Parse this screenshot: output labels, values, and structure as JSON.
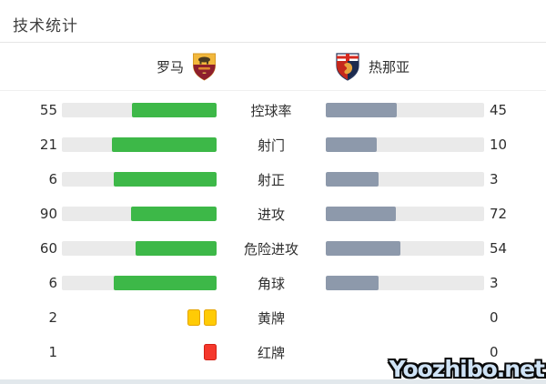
{
  "title": "技术统计",
  "teams": {
    "home": {
      "name": "罗马",
      "badge": "roma-crest"
    },
    "away": {
      "name": "热那亚",
      "badge": "genoa-crest"
    }
  },
  "stats": [
    {
      "label": "控球率",
      "home": 55,
      "away": 45,
      "type": "bar"
    },
    {
      "label": "射门",
      "home": 21,
      "away": 10,
      "type": "bar"
    },
    {
      "label": "射正",
      "home": 6,
      "away": 3,
      "type": "bar"
    },
    {
      "label": "进攻",
      "home": 90,
      "away": 72,
      "type": "bar"
    },
    {
      "label": "危险进攻",
      "home": 60,
      "away": 54,
      "type": "bar"
    },
    {
      "label": "角球",
      "home": 6,
      "away": 3,
      "type": "bar"
    },
    {
      "label": "黄牌",
      "home": 2,
      "away": 0,
      "type": "cards",
      "card": "yellow"
    },
    {
      "label": "红牌",
      "home": 1,
      "away": 0,
      "type": "cards",
      "card": "red"
    }
  ],
  "chart_data": {
    "type": "bar",
    "orientation": "horizontal-paired",
    "title": "技术统计",
    "categories": [
      "控球率",
      "射门",
      "射正",
      "进攻",
      "危险进攻",
      "角球",
      "黄牌",
      "红牌"
    ],
    "series": [
      {
        "name": "罗马",
        "color": "#3db848",
        "values": [
          55,
          21,
          6,
          90,
          60,
          6,
          2,
          1
        ]
      },
      {
        "name": "热那亚",
        "color": "#8d99ab",
        "values": [
          45,
          10,
          3,
          72,
          54,
          3,
          0,
          0
        ]
      }
    ],
    "bar_scale": "each row filled proportionally: value / (home+away)",
    "grid": false,
    "legend_position": "top"
  },
  "colors": {
    "home_fill": "#3db848",
    "away_fill": "#8d99ab",
    "track": "#eaeaea",
    "yellow_card": "#ffcb05",
    "yellow_card_border": "#e5a400",
    "red_card": "#f5382c",
    "red_card_border": "#d42015"
  },
  "watermark": "Yoozhibo.net"
}
